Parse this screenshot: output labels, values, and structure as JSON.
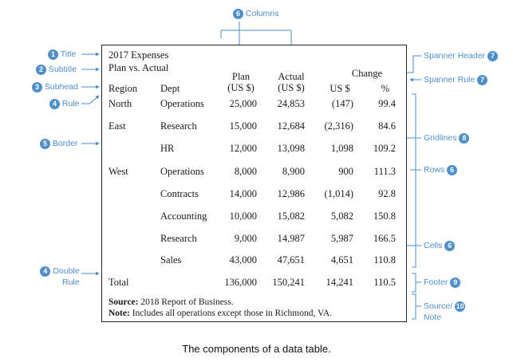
{
  "caption": "The components of a data table.",
  "table": {
    "title": "2017 Expenses",
    "subtitle": "Plan vs. Actual",
    "subheads": {
      "region": "Region",
      "dept": "Dept",
      "plan": [
        "Plan",
        "(US $)"
      ],
      "actual": [
        "Actual",
        "(US $)"
      ],
      "spanner": "Change",
      "us": "US $",
      "pct": "%"
    },
    "rows": [
      {
        "region": "North",
        "dept": "Operations",
        "plan": "25,000",
        "actual": "24,853",
        "change": "(147)",
        "pct": "99.4"
      },
      {
        "region": "East",
        "dept": "Research",
        "plan": "15,000",
        "actual": "12,684",
        "change": "(2,316)",
        "pct": "84.6"
      },
      {
        "region": "",
        "dept": "HR",
        "plan": "12,000",
        "actual": "13,098",
        "change": "1,098",
        "pct": "109.2"
      },
      {
        "region": "West",
        "dept": "Operations",
        "plan": "8,000",
        "actual": "8,900",
        "change": "900",
        "pct": "111.3"
      },
      {
        "region": "",
        "dept": "Contracts",
        "plan": "14,000",
        "actual": "12,986",
        "change": "(1,014)",
        "pct": "92.8"
      },
      {
        "region": "",
        "dept": "Accounting",
        "plan": "10,000",
        "actual": "15,082",
        "change": "5,082",
        "pct": "150.8"
      },
      {
        "region": "",
        "dept": "Research",
        "plan": "9,000",
        "actual": "14,987",
        "change": "5,987",
        "pct": "166.5"
      },
      {
        "region": "",
        "dept": "Sales",
        "plan": "43,000",
        "actual": "47,651",
        "change": "4,651",
        "pct": "110.8"
      }
    ],
    "footer": {
      "label": "Total",
      "plan": "136,000",
      "actual": "150,241",
      "change": "14,241",
      "pct": "110.5"
    },
    "source": {
      "label": "Source:",
      "text": "2018 Report of Business."
    },
    "note": {
      "label": "Note:",
      "text": "Includes all operations except those in Richmond, VA."
    }
  },
  "annotations": {
    "title": {
      "num": "1",
      "label": "Title"
    },
    "subtitle": {
      "num": "2",
      "label": "Subtitle"
    },
    "subhead": {
      "num": "3",
      "label": "Subhead"
    },
    "rule": {
      "num": "4",
      "label": "Rule"
    },
    "border": {
      "num": "5",
      "label": "Border"
    },
    "double_rule": {
      "num": "4",
      "label": "Double",
      "label2": "Rule"
    },
    "columns": {
      "num": "6",
      "label": "Columns"
    },
    "spanner_header": {
      "num": "7",
      "label": "Spanner Header"
    },
    "spanner_rule": {
      "num": "7",
      "label": "Spanner Rule"
    },
    "gridlines": {
      "num": "8",
      "label": "Gridlines"
    },
    "rows": {
      "num": "6",
      "label": "Rows"
    },
    "cells": {
      "num": "6",
      "label": "Cells"
    },
    "footer": {
      "num": "9",
      "label": "Footer"
    },
    "source_note": {
      "num": "10",
      "label": "Source/",
      "label2": "Note"
    }
  },
  "colors": {
    "accent": "#4e8fca",
    "ink": "#1a1a1a",
    "gridline": "#9a9a9a",
    "highlight": "#d7d7d7"
  }
}
